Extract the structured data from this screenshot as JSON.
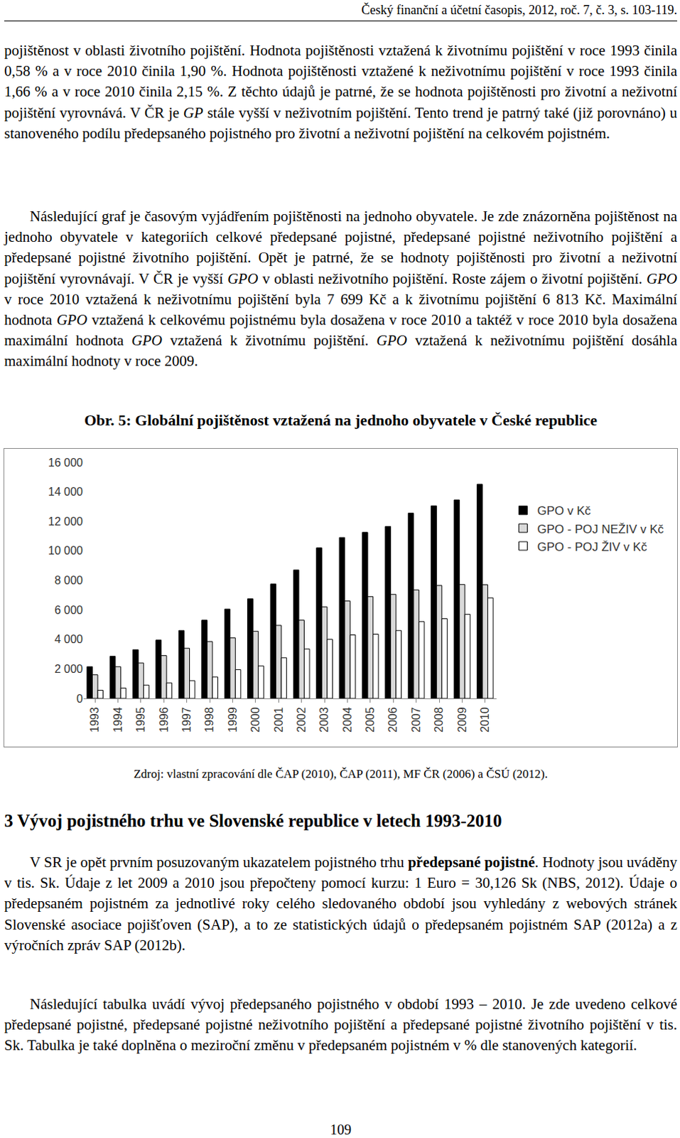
{
  "header": "Český finanční a účetní časopis, 2012, roč. 7, č. 3, s. 103-119.",
  "paragraphs_before": [
    [
      {
        "text": "pojištěnost v oblasti životního pojištění. Hodnota pojištěnosti vztažená k životnímu pojištění v roce 1993 činila 0,58 % a v roce 2010 činila 1,90 %. Hodnota pojištěnosti vztažené k neživotnímu pojištění v roce 1993 činila 1,66 % a v roce 2010 činila 2,15 %. Z těchto údajů je patrné, že se hodnota pojištěnosti pro životní a neživotní pojištění vyrovnává. V ČR je "
      },
      {
        "text": "GP",
        "italic": true
      },
      {
        "text": " stále vyšší v neživotním pojištění. Tento trend je patrný také (již porovnáno) u stanoveného podílu předepsaného pojistného pro životní a neživotní pojištění na celkovém pojistném."
      }
    ],
    [
      {
        "text": "Následující graf je časovým vyjádřením pojištěnosti na jednoho obyvatele. Je zde znázorněna pojištěnost na jednoho obyvatele v kategoriích celkové předepsané pojistné, předepsané pojistné neživotního pojištění a předepsané pojistné životního pojištění. Opět je patrné, že se hodnoty pojištěnosti pro životní a neživotní pojištění vyrovnávají. V ČR je vyšší "
      },
      {
        "text": "GPO",
        "italic": true
      },
      {
        "text": " v oblasti neživotního pojištění. Roste zájem o životní pojištění. "
      },
      {
        "text": "GPO",
        "italic": true
      },
      {
        "text": " v roce 2010 vztažená k neživotnímu pojištění byla 7 699 Kč a k životnímu pojištění 6 813 Kč. Maximální hodnota "
      },
      {
        "text": "GPO",
        "italic": true
      },
      {
        "text": " vztažená k celkovému pojistnému byla dosažena v roce 2010 a taktéž v roce 2010 byla dosažena maximální hodnota "
      },
      {
        "text": "GPO",
        "italic": true
      },
      {
        "text": " vztažená k životnímu pojištění. "
      },
      {
        "text": "GPO",
        "italic": true
      },
      {
        "text": " vztažená k neživotnímu pojištění dosáhla maximální hodnoty v roce 2009."
      }
    ]
  ],
  "figure_caption": "Obr. 5: Globální pojištěnost vztažená na jednoho obyvatele v České republice",
  "chart_data": {
    "type": "bar",
    "categories": [
      "1993",
      "1994",
      "1995",
      "1996",
      "1997",
      "1998",
      "1999",
      "2000",
      "2001",
      "2002",
      "2003",
      "2004",
      "2005",
      "2006",
      "2007",
      "2008",
      "2009",
      "2010"
    ],
    "series": [
      {
        "name": "GPO v Kč",
        "color": "#000000",
        "values": [
          2150,
          2850,
          3300,
          3950,
          4600,
          5300,
          6050,
          6750,
          7750,
          8700,
          10200,
          10900,
          11250,
          11650,
          12550,
          13050,
          13450,
          14512
        ]
      },
      {
        "name": "GPO - POJ NEŽIV v Kč",
        "color": "#d9d9d9",
        "values": [
          1600,
          2150,
          2400,
          2900,
          3400,
          3850,
          4100,
          4550,
          4950,
          5300,
          6200,
          6600,
          6900,
          7050,
          7350,
          7650,
          7720,
          7699
        ]
      },
      {
        "name": "GPO - POJ ŽIV v Kč",
        "color": "#ffffff",
        "values": [
          550,
          700,
          900,
          1050,
          1200,
          1450,
          1950,
          2200,
          2750,
          3350,
          4000,
          4300,
          4350,
          4600,
          5200,
          5400,
          5700,
          6813
        ]
      }
    ],
    "ylim": [
      0,
      16000
    ],
    "yticks": [
      0,
      {
        "value": 2000,
        "label": "2 000"
      },
      {
        "value": 4000,
        "label": "4 000"
      },
      {
        "value": 6000,
        "label": "6 000"
      },
      {
        "value": 8000,
        "label": "8 000"
      },
      {
        "value": 10000,
        "label": "10 000"
      },
      {
        "value": 12000,
        "label": "12 000"
      },
      {
        "value": 14000,
        "label": "14 000"
      },
      {
        "value": 16000,
        "label": "16 000"
      }
    ],
    "grid": false,
    "legend": "right"
  },
  "figure_source": "Zdroj: vlastní zpracování dle ČAP (2010), ČAP (2011), MF ČR (2006) a ČSÚ (2012).",
  "section_heading": "3 Vývoj pojistného trhu ve Slovenské republice v letech 1993-2010",
  "paragraphs_after": [
    [
      {
        "text": "V SR je opět prvním posuzovaným ukazatelem pojistného trhu "
      },
      {
        "text": "předepsané pojistné",
        "bold": true
      },
      {
        "text": ". Hodnoty jsou uváděny v tis. Sk. Údaje z let 2009 a 2010 jsou přepočteny pomocí kurzu: 1 Euro = 30,126 Sk (NBS, 2012). Údaje o předepsaném pojistném za jednotlivé roky celého sledovaného období jsou vyhledány z webových stránek Slovenské asociace pojišťoven (SAP), a to ze statistických údajů o předepsaném pojistném SAP (2012a) a z výročních zpráv SAP (2012b)."
      }
    ],
    [
      {
        "text": "Následující tabulka uvádí vývoj předepsaného pojistného v období 1993 – 2010. Je zde uvedeno celkové předepsané pojistné, předepsané pojistné neživotního pojištění a předepsané pojistné životního pojištění v tis. Sk. Tabulka je také doplněna o meziroční změnu v předepsaném pojistném v % dle stanovených kategorií."
      }
    ]
  ],
  "page_number": "109"
}
